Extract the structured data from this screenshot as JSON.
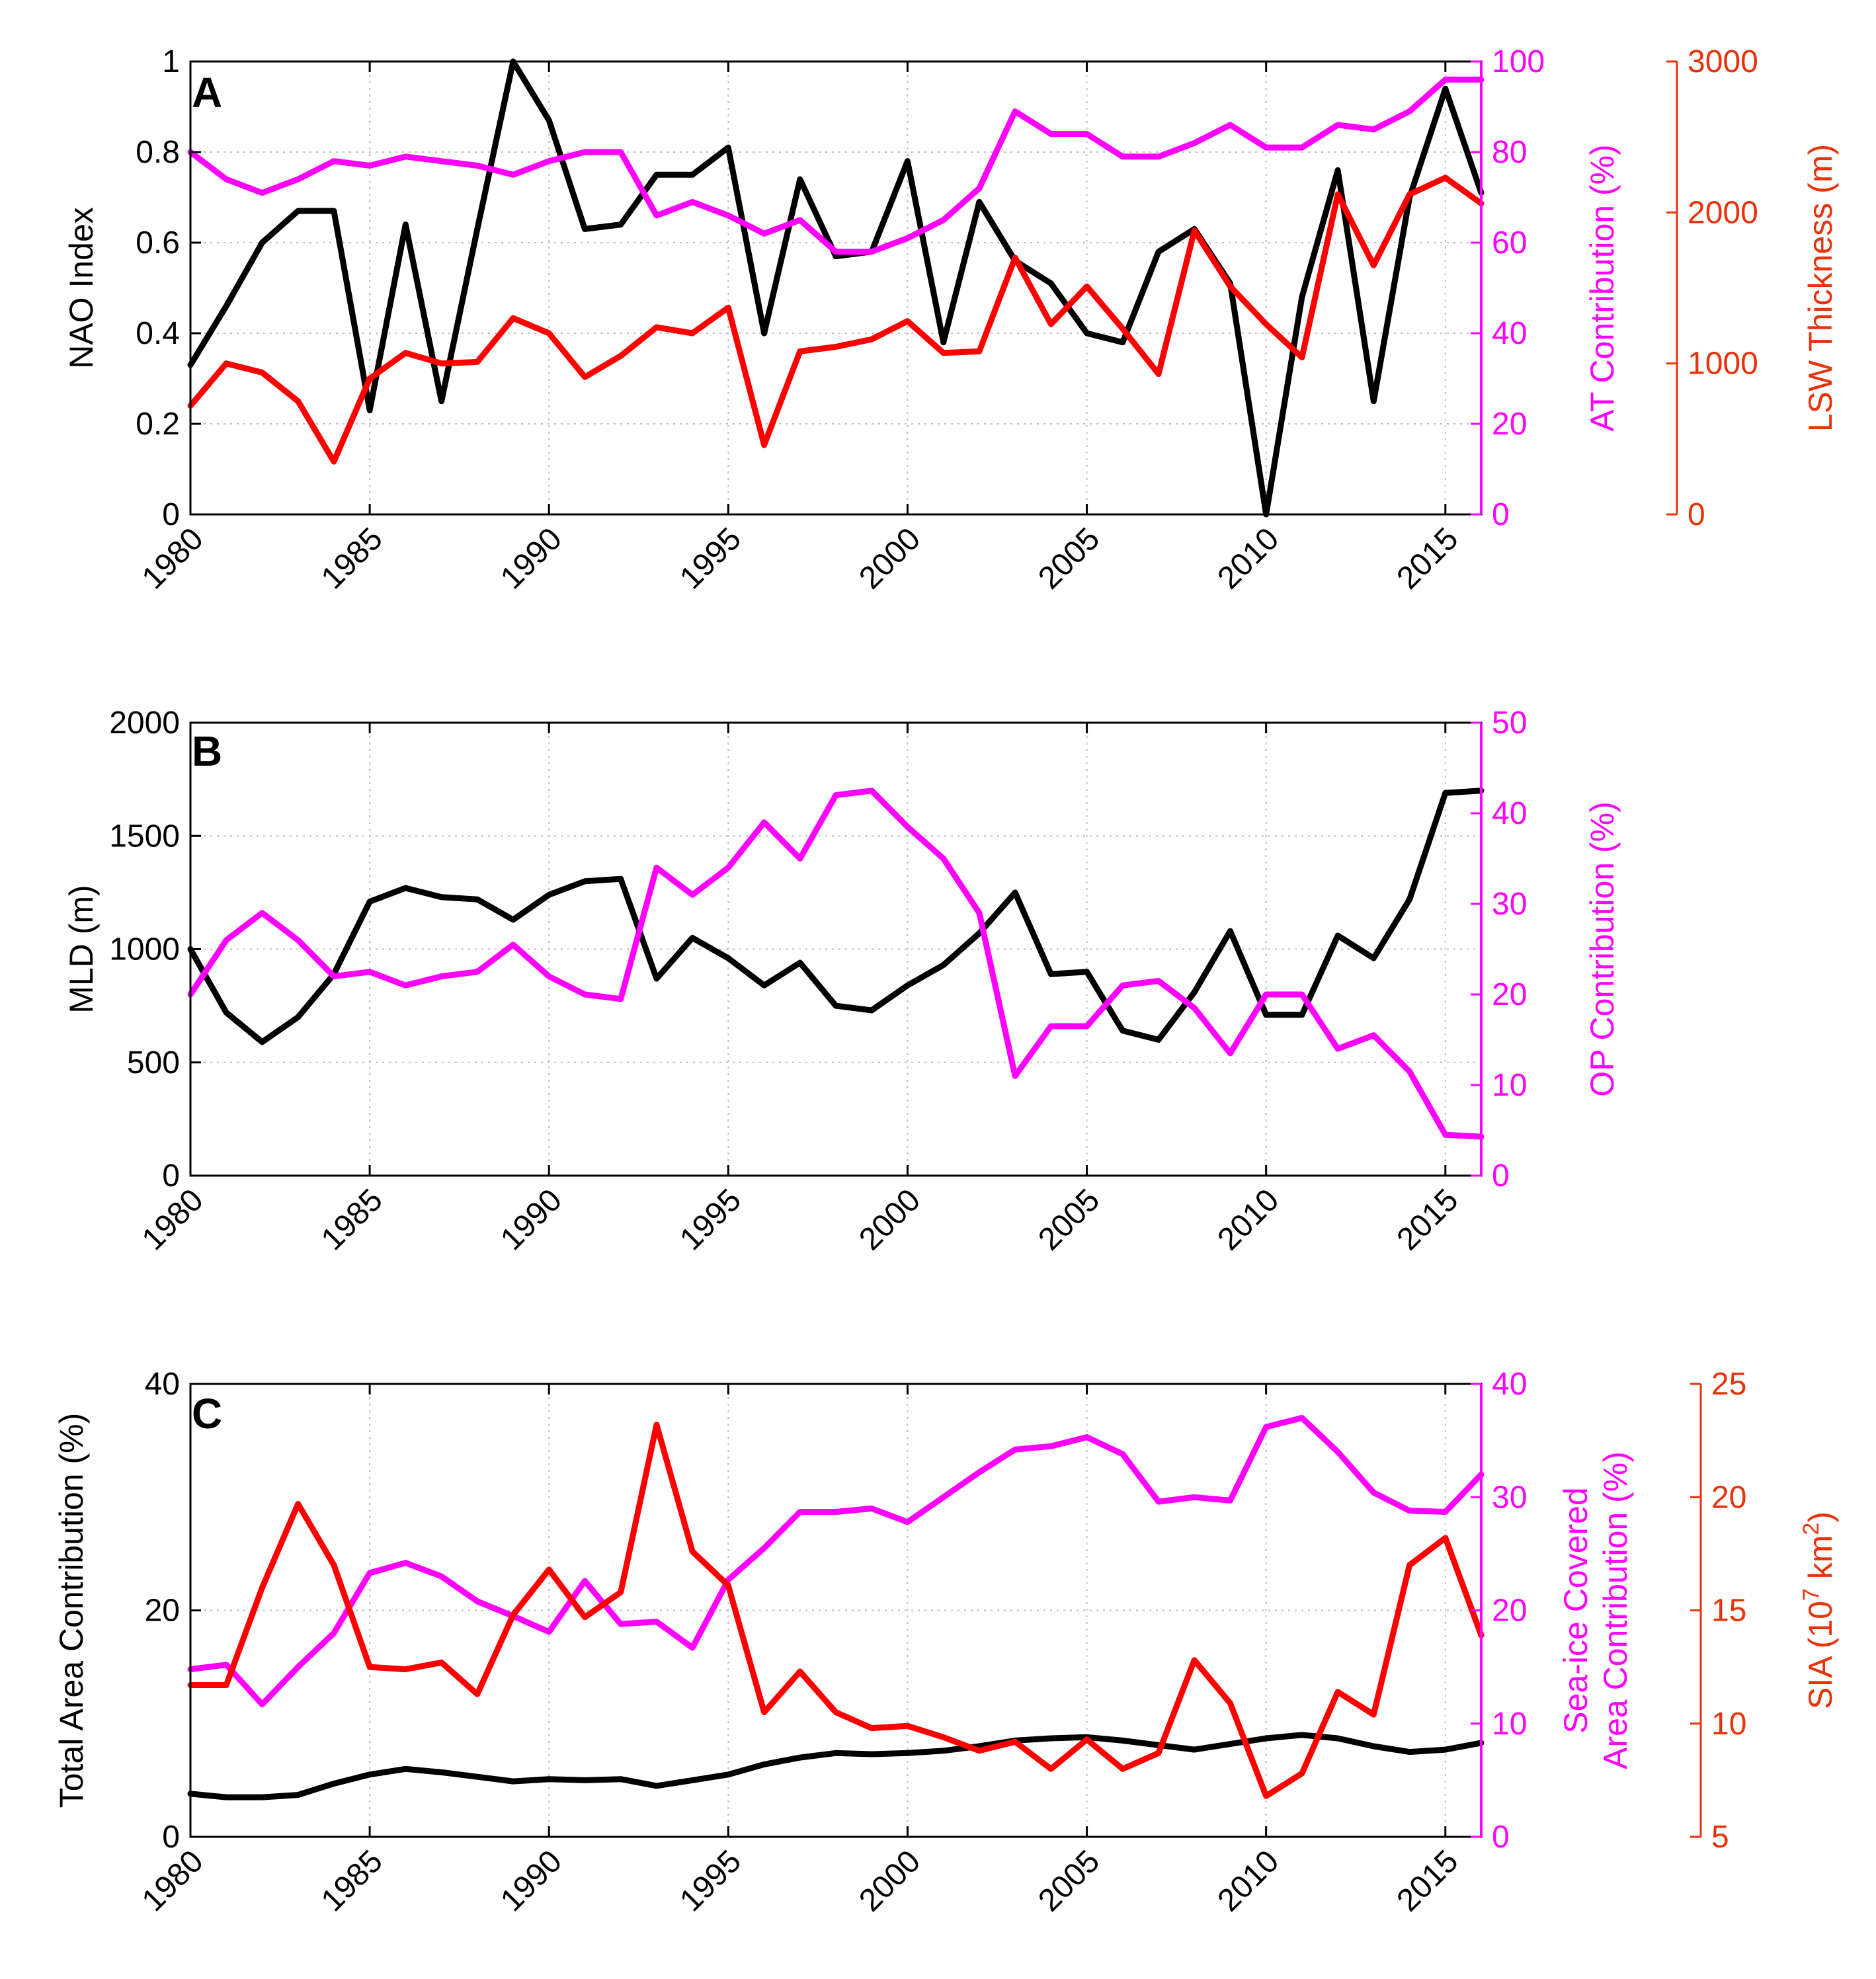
{
  "chart_data": [
    {
      "type": "line",
      "panel": "A",
      "x": [
        1980,
        1981,
        1982,
        1983,
        1984,
        1985,
        1986,
        1987,
        1988,
        1989,
        1990,
        1991,
        1992,
        1993,
        1994,
        1995,
        1996,
        1997,
        1998,
        1999,
        2000,
        2001,
        2002,
        2003,
        2004,
        2005,
        2006,
        2007,
        2008,
        2009,
        2010,
        2011,
        2012,
        2013,
        2014,
        2015,
        2016
      ],
      "xlim": [
        1980,
        2016
      ],
      "xticks": [
        "1980",
        "1985",
        "1990",
        "1995",
        "2000",
        "2005",
        "2010",
        "2015"
      ],
      "axes": [
        {
          "side": "left",
          "label": "NAO Index",
          "ylim": [
            0,
            1
          ],
          "ticks": [
            "0",
            "0.2",
            "0.4",
            "0.6",
            "0.8",
            "1"
          ],
          "color": "#000000"
        },
        {
          "side": "right",
          "label": "AT Contribution (%)",
          "ylim": [
            0,
            100
          ],
          "ticks": [
            "0",
            "20",
            "40",
            "60",
            "80",
            "100"
          ],
          "color": "#ff00ff"
        },
        {
          "side": "right-outer",
          "label": "LSW Thickness (m)",
          "ylim": [
            0,
            3000
          ],
          "ticks": [
            "0",
            "1000",
            "2000",
            "3000"
          ],
          "color": "#e8320a"
        }
      ],
      "series": [
        {
          "axis": 0,
          "color": "#000000",
          "values": [
            0.33,
            0.46,
            0.6,
            0.67,
            0.67,
            0.23,
            0.64,
            0.25,
            0.63,
            1.0,
            0.87,
            0.63,
            0.64,
            0.75,
            0.75,
            0.81,
            0.4,
            0.74,
            0.57,
            0.58,
            0.78,
            0.38,
            0.69,
            0.56,
            0.51,
            0.4,
            0.38,
            0.58,
            0.63,
            0.51,
            0.0,
            0.48,
            0.76,
            0.25,
            0.7,
            0.94,
            0.71
          ]
        },
        {
          "axis": 1,
          "color": "#ff00ff",
          "values": [
            80,
            74,
            71,
            74,
            78,
            77,
            79,
            78,
            77,
            75,
            78,
            80,
            80,
            66,
            69,
            66,
            62,
            65,
            58,
            58,
            61,
            65,
            72,
            89,
            84,
            84,
            79,
            79,
            82,
            86,
            81,
            81,
            86,
            85,
            89,
            96,
            96
          ]
        },
        {
          "axis": 2,
          "color": "#ff0000",
          "values": [
            720,
            1000,
            940,
            750,
            350,
            900,
            1070,
            1000,
            1010,
            1300,
            1200,
            910,
            1050,
            1240,
            1200,
            1370,
            460,
            1080,
            1110,
            1160,
            1280,
            1070,
            1080,
            1700,
            1260,
            1510,
            1230,
            930,
            1880,
            1510,
            1260,
            1040,
            2120,
            1650,
            2120,
            2230,
            2060
          ]
        }
      ]
    },
    {
      "type": "line",
      "panel": "B",
      "x": [
        1980,
        1981,
        1982,
        1983,
        1984,
        1985,
        1986,
        1987,
        1988,
        1989,
        1990,
        1991,
        1992,
        1993,
        1994,
        1995,
        1996,
        1997,
        1998,
        1999,
        2000,
        2001,
        2002,
        2003,
        2004,
        2005,
        2006,
        2007,
        2008,
        2009,
        2010,
        2011,
        2012,
        2013,
        2014,
        2015,
        2016
      ],
      "xlim": [
        1980,
        2016
      ],
      "xticks": [
        "1980",
        "1985",
        "1990",
        "1995",
        "2000",
        "2005",
        "2010",
        "2015"
      ],
      "axes": [
        {
          "side": "left",
          "label": "MLD (m)",
          "ylim": [
            0,
            2000
          ],
          "ticks": [
            "0",
            "500",
            "1000",
            "1500",
            "2000"
          ],
          "color": "#000000"
        },
        {
          "side": "right",
          "label": "OP Contribution (%)",
          "ylim": [
            0,
            50
          ],
          "ticks": [
            "0",
            "10",
            "20",
            "30",
            "40",
            "50"
          ],
          "color": "#ff00ff"
        }
      ],
      "series": [
        {
          "axis": 0,
          "color": "#000000",
          "values": [
            1000,
            720,
            590,
            700,
            890,
            1210,
            1270,
            1230,
            1220,
            1130,
            1240,
            1300,
            1310,
            870,
            1050,
            960,
            840,
            940,
            750,
            730,
            840,
            930,
            1070,
            1250,
            890,
            900,
            640,
            600,
            810,
            1080,
            710,
            710,
            1060,
            960,
            1220,
            1690,
            1700
          ]
        },
        {
          "axis": 1,
          "color": "#ff00ff",
          "values": [
            20,
            26,
            29,
            26,
            22,
            22.5,
            21,
            22,
            22.5,
            25.5,
            22,
            20,
            19.5,
            34,
            31,
            34,
            39,
            35,
            42,
            42.5,
            38.5,
            35,
            29,
            11,
            16.5,
            16.5,
            21,
            21.5,
            18.5,
            13.5,
            20,
            20,
            14,
            15.5,
            11.5,
            4.5,
            4.3
          ]
        }
      ]
    },
    {
      "type": "line",
      "panel": "C",
      "x": [
        1980,
        1981,
        1982,
        1983,
        1984,
        1985,
        1986,
        1987,
        1988,
        1989,
        1990,
        1991,
        1992,
        1993,
        1994,
        1995,
        1996,
        1997,
        1998,
        1999,
        2000,
        2001,
        2002,
        2003,
        2004,
        2005,
        2006,
        2007,
        2008,
        2009,
        2010,
        2011,
        2012,
        2013,
        2014,
        2015,
        2016
      ],
      "xlim": [
        1980,
        2016
      ],
      "xticks": [
        "1980",
        "1985",
        "1990",
        "1995",
        "2000",
        "2005",
        "2010",
        "2015"
      ],
      "axes": [
        {
          "side": "left",
          "label": "Total Area Contribution (%)",
          "ylim": [
            0,
            40
          ],
          "ticks": [
            "0",
            "20",
            "40"
          ],
          "color": "#000000"
        },
        {
          "side": "right",
          "label_lines": [
            "Sea-ice Covered",
            "Area Contribution (%)"
          ],
          "ylim": [
            0,
            40
          ],
          "ticks": [
            "0",
            "10",
            "20",
            "30",
            "40"
          ],
          "color": "#ff00ff"
        },
        {
          "side": "right-outer",
          "label_main": "SIA (10",
          "label_sup": "7",
          "label_end": " km",
          "label_sup2": "2",
          "label_close": ")",
          "ylim": [
            5,
            25
          ],
          "ticks": [
            "5",
            "10",
            "15",
            "20",
            "25"
          ],
          "color": "#e8320a"
        }
      ],
      "series": [
        {
          "axis": 0,
          "color": "#000000",
          "values": [
            3.8,
            3.5,
            3.5,
            3.7,
            4.7,
            5.5,
            6,
            5.7,
            5.3,
            4.9,
            5.1,
            5,
            5.1,
            4.5,
            5,
            5.5,
            6.4,
            7,
            7.4,
            7.3,
            7.4,
            7.6,
            8,
            8.5,
            8.7,
            8.8,
            8.5,
            8.1,
            7.7,
            8.2,
            8.7,
            9,
            8.7,
            8,
            7.5,
            7.7,
            8.3
          ]
        },
        {
          "axis": 1,
          "color": "#ff00ff",
          "values": [
            14.8,
            15.2,
            11.7,
            15,
            18,
            23.3,
            24.2,
            23,
            20.8,
            19.5,
            18.1,
            22.6,
            18.8,
            19,
            16.7,
            22.7,
            25.5,
            28.7,
            28.7,
            29,
            27.8,
            30,
            32.2,
            34.2,
            34.5,
            35.3,
            33.8,
            29.6,
            30,
            29.7,
            36.2,
            37,
            34,
            30.4,
            28.8,
            28.7,
            32
          ]
        },
        {
          "axis": 2,
          "color": "#ff0000",
          "values": [
            11.7,
            11.7,
            16,
            19.7,
            17,
            12.5,
            12.4,
            12.7,
            11.3,
            14.8,
            16.8,
            14.7,
            15.8,
            23.2,
            17.6,
            16.1,
            10.5,
            12.3,
            10.5,
            9.8,
            9.9,
            9.4,
            8.8,
            9.2,
            8,
            9.3,
            8,
            8.7,
            12.8,
            10.9,
            6.8,
            7.8,
            11.4,
            10.4,
            17,
            18.2,
            13.9
          ]
        }
      ]
    }
  ]
}
